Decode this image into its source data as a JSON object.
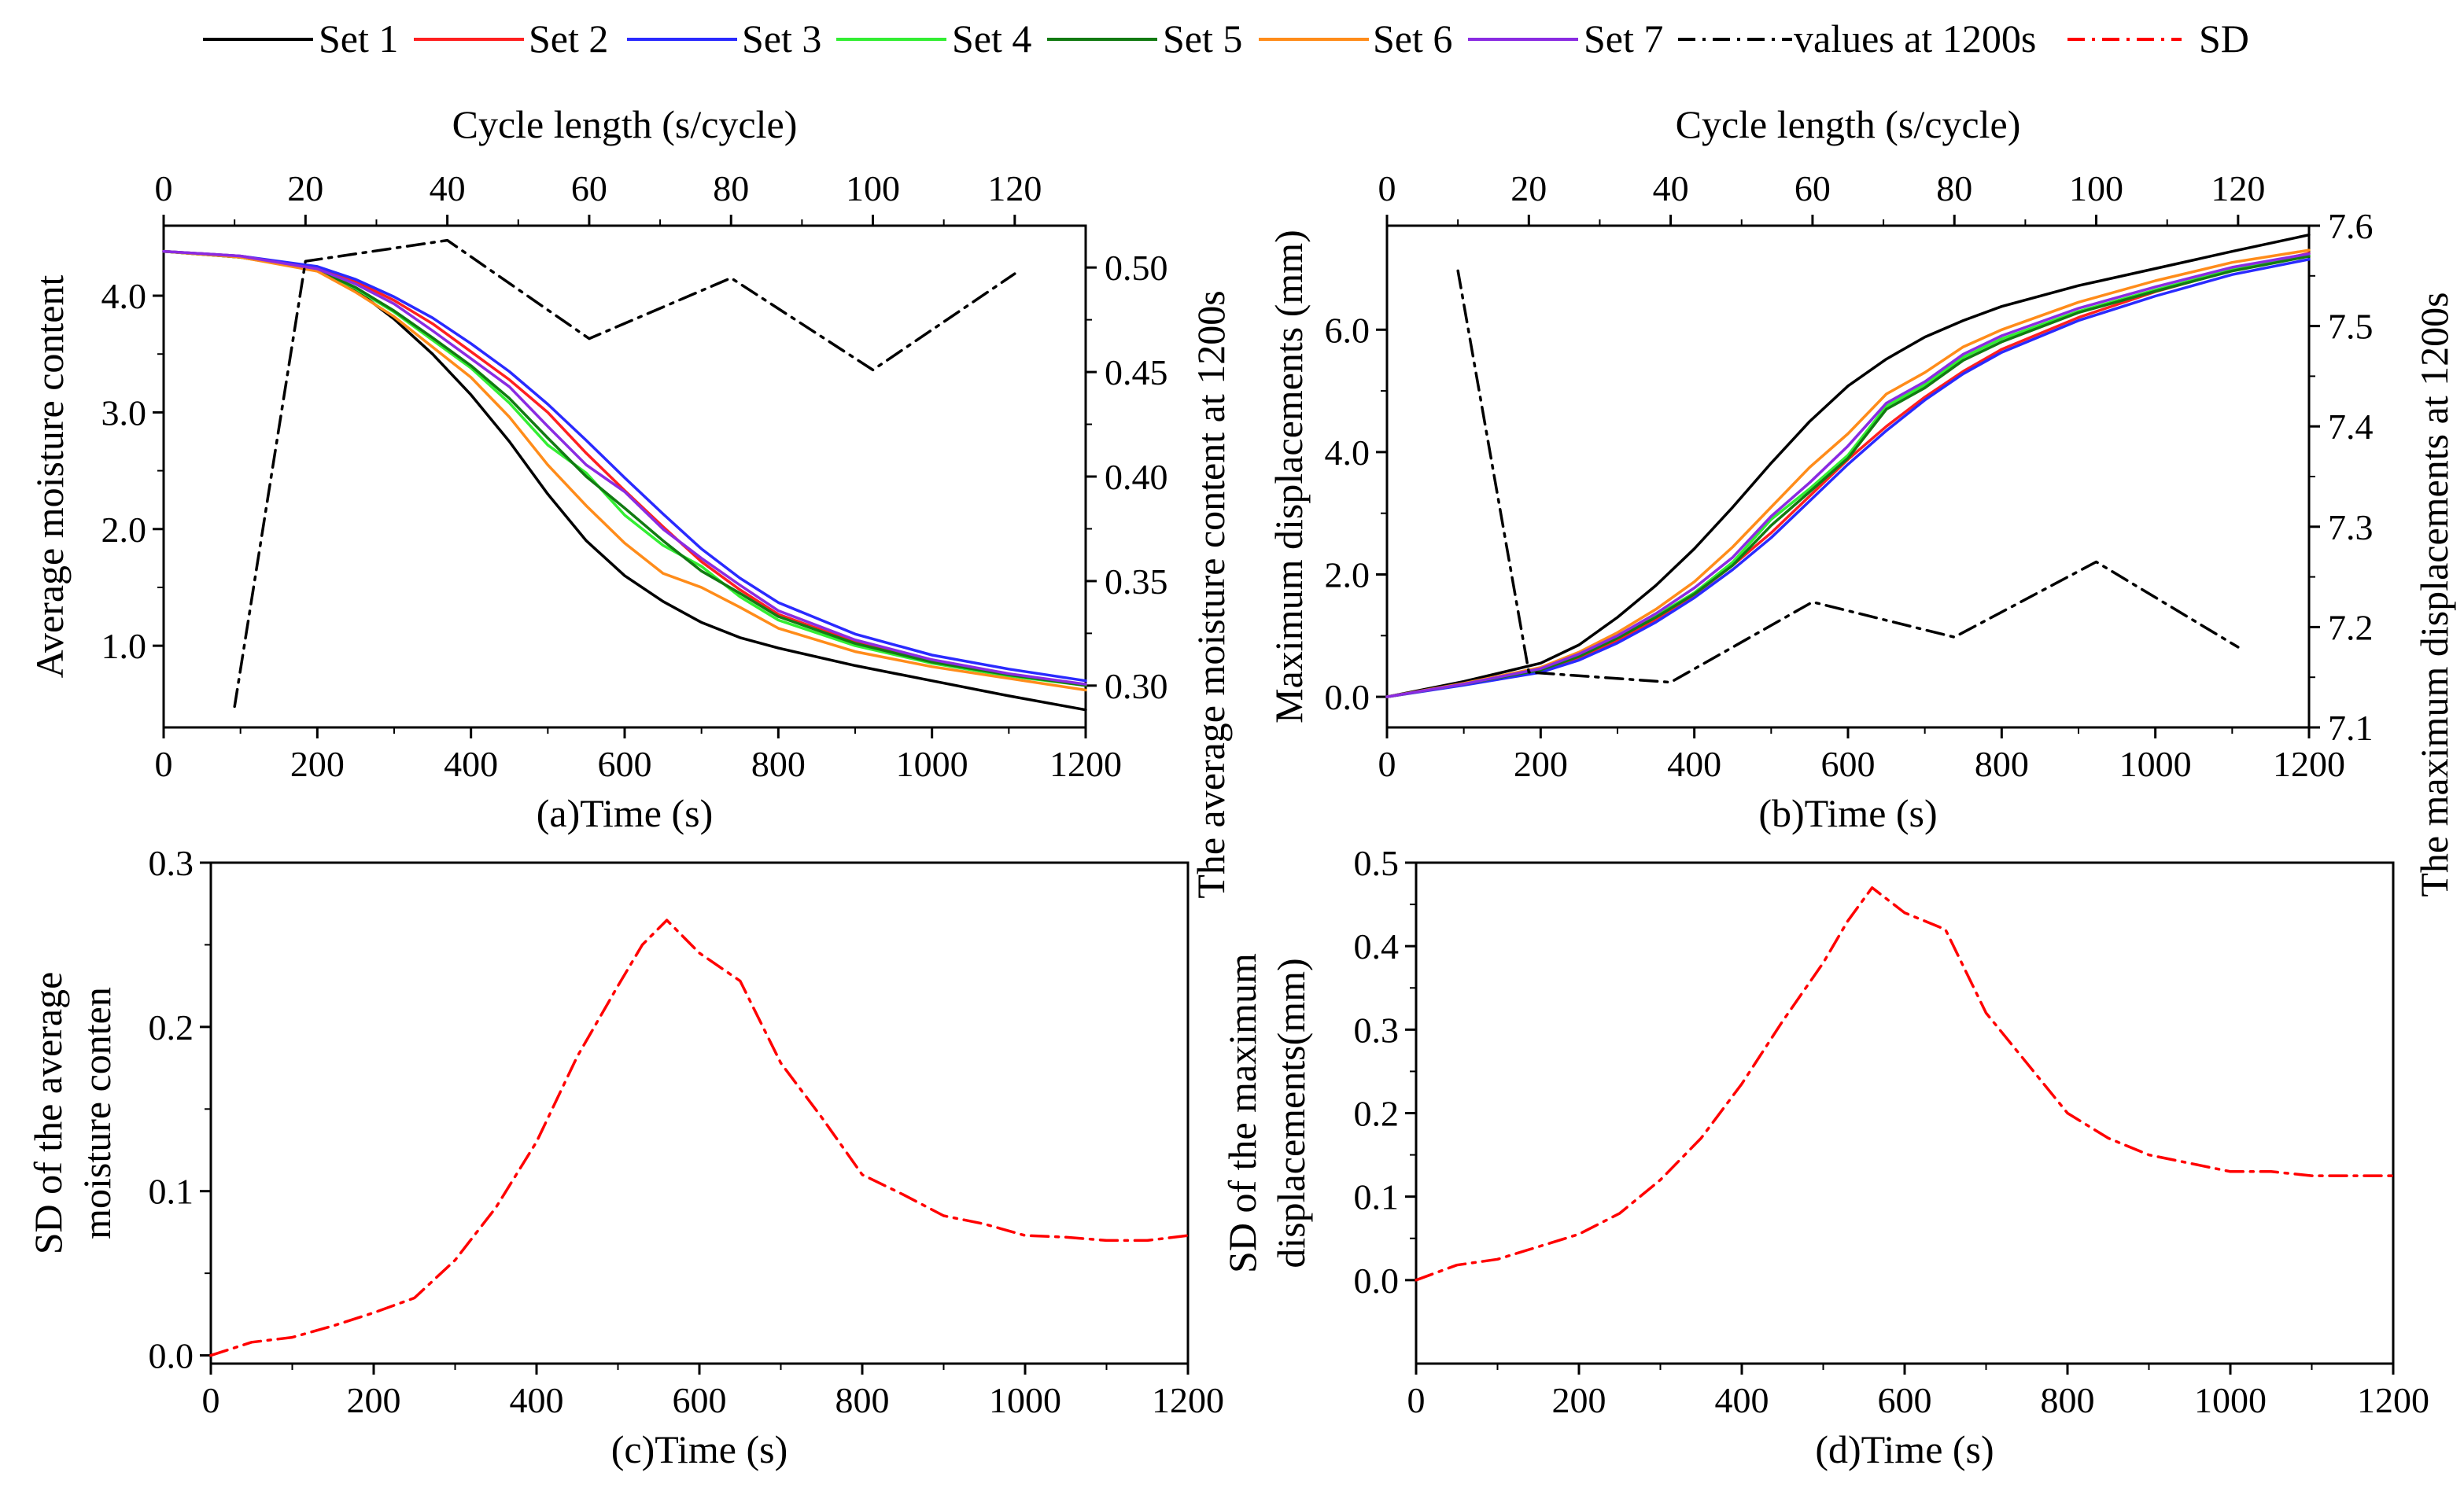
{
  "legend": [
    {
      "label": "Set 1",
      "color": "#000000",
      "style": "solid"
    },
    {
      "label": "Set 2",
      "color": "#ff2020",
      "style": "solid"
    },
    {
      "label": "Set 3",
      "color": "#2a2aff",
      "style": "solid"
    },
    {
      "label": "Set 4",
      "color": "#33ee33",
      "style": "solid"
    },
    {
      "label": "Set 5",
      "color": "#127a12",
      "style": "solid"
    },
    {
      "label": "Set 6",
      "color": "#ff8c1a",
      "style": "solid"
    },
    {
      "label": "Set 7",
      "color": "#8a2be2",
      "style": "solid"
    },
    {
      "label": "values at 1200s",
      "color": "#000000",
      "style": "dashdot"
    },
    {
      "label": "SD",
      "color": "#ff0000",
      "style": "dashdot"
    }
  ],
  "chart_data": [
    {
      "id": "a",
      "type": "line",
      "xlabel": "(a)Time (s)",
      "ylabel": "Average moisture content",
      "top_xlabel": "Cycle length (s/cycle)",
      "right_ylabel": "The average moisture content at 1200s",
      "xlim": [
        0,
        1200
      ],
      "ylim": [
        0.3,
        4.6
      ],
      "xticks": [
        0,
        200,
        400,
        600,
        800,
        1000,
        1200
      ],
      "yticks": [
        1.0,
        2.0,
        3.0,
        4.0
      ],
      "yticklabels": [
        "1.0",
        "2.0",
        "3.0",
        "4.0"
      ],
      "top_xlim": [
        0,
        130
      ],
      "top_xticks": [
        0,
        20,
        40,
        60,
        80,
        100,
        120
      ],
      "right_ylim": [
        0.28,
        0.52
      ],
      "right_yticks": [
        0.3,
        0.35,
        0.4,
        0.45,
        0.5
      ],
      "right_yticklabels": [
        "0.30",
        "0.35",
        "0.40",
        "0.45",
        "0.50"
      ],
      "series": [
        {
          "name": "Set 1",
          "x": [
            0,
            100,
            200,
            250,
            300,
            350,
            400,
            450,
            500,
            550,
            600,
            650,
            700,
            750,
            800,
            900,
            1000,
            1100,
            1200
          ],
          "values": [
            4.38,
            4.33,
            4.22,
            4.05,
            3.8,
            3.5,
            3.15,
            2.75,
            2.3,
            1.9,
            1.6,
            1.38,
            1.2,
            1.07,
            0.98,
            0.83,
            0.7,
            0.57,
            0.45
          ]
        },
        {
          "name": "Set 2",
          "x": [
            0,
            100,
            200,
            250,
            300,
            350,
            400,
            450,
            500,
            550,
            600,
            650,
            700,
            750,
            800,
            900,
            1000,
            1100,
            1200
          ],
          "values": [
            4.38,
            4.34,
            4.24,
            4.12,
            3.96,
            3.76,
            3.52,
            3.28,
            3.0,
            2.65,
            2.33,
            2.02,
            1.72,
            1.48,
            1.27,
            1.03,
            0.87,
            0.75,
            0.66
          ]
        },
        {
          "name": "Set 3",
          "x": [
            0,
            100,
            200,
            250,
            300,
            350,
            400,
            450,
            500,
            550,
            600,
            650,
            700,
            750,
            800,
            900,
            1000,
            1100,
            1200
          ],
          "values": [
            4.38,
            4.34,
            4.25,
            4.14,
            3.99,
            3.81,
            3.59,
            3.35,
            3.07,
            2.76,
            2.44,
            2.13,
            1.83,
            1.58,
            1.37,
            1.1,
            0.92,
            0.8,
            0.7
          ]
        },
        {
          "name": "Set 4",
          "x": [
            0,
            100,
            200,
            250,
            300,
            350,
            400,
            450,
            500,
            550,
            600,
            650,
            700,
            750,
            800,
            900,
            1000,
            1100,
            1200
          ],
          "values": [
            4.38,
            4.33,
            4.22,
            4.06,
            3.86,
            3.62,
            3.38,
            3.08,
            2.72,
            2.48,
            2.12,
            1.86,
            1.68,
            1.42,
            1.22,
            1.0,
            0.85,
            0.74,
            0.66
          ]
        },
        {
          "name": "Set 5",
          "x": [
            0,
            100,
            200,
            250,
            300,
            350,
            400,
            450,
            500,
            550,
            600,
            650,
            700,
            750,
            800,
            900,
            1000,
            1100,
            1200
          ],
          "values": [
            4.38,
            4.33,
            4.22,
            4.07,
            3.87,
            3.64,
            3.4,
            3.12,
            2.78,
            2.45,
            2.18,
            1.9,
            1.64,
            1.45,
            1.25,
            1.02,
            0.86,
            0.75,
            0.66
          ]
        },
        {
          "name": "Set 6",
          "x": [
            0,
            100,
            200,
            250,
            300,
            350,
            400,
            450,
            500,
            550,
            600,
            650,
            700,
            750,
            800,
            900,
            1000,
            1100,
            1200
          ],
          "values": [
            4.38,
            4.33,
            4.21,
            4.03,
            3.82,
            3.56,
            3.3,
            2.96,
            2.55,
            2.2,
            1.88,
            1.62,
            1.5,
            1.33,
            1.15,
            0.95,
            0.82,
            0.72,
            0.62
          ]
        },
        {
          "name": "Set 7",
          "x": [
            0,
            100,
            200,
            250,
            300,
            350,
            400,
            450,
            500,
            550,
            600,
            650,
            700,
            750,
            800,
            900,
            1000,
            1100,
            1200
          ],
          "values": [
            4.38,
            4.34,
            4.23,
            4.1,
            3.93,
            3.7,
            3.46,
            3.22,
            2.88,
            2.55,
            2.32,
            2.0,
            1.75,
            1.52,
            1.3,
            1.05,
            0.88,
            0.76,
            0.67
          ]
        },
        {
          "name": "values at 1200s",
          "axis": "secondary",
          "x": [
            10,
            20,
            40,
            60,
            80,
            100,
            120
          ],
          "values": [
            0.29,
            0.503,
            0.513,
            0.466,
            0.495,
            0.451,
            0.497
          ]
        }
      ]
    },
    {
      "id": "b",
      "type": "line",
      "xlabel": "(b)Time (s)",
      "ylabel": "Maximum displacements (mm)",
      "top_xlabel": "Cycle length (s/cycle)",
      "right_ylabel": "The maximum displacements at 1200s",
      "xlim": [
        0,
        1200
      ],
      "ylim": [
        -0.5,
        7.7
      ],
      "xticks": [
        0,
        200,
        400,
        600,
        800,
        1000,
        1200
      ],
      "yticks": [
        0.0,
        2.0,
        4.0,
        6.0
      ],
      "yticklabels": [
        "0.0",
        "2.0",
        "4.0",
        "6.0"
      ],
      "top_xlim": [
        0,
        130
      ],
      "top_xticks": [
        0,
        20,
        40,
        60,
        80,
        100,
        120
      ],
      "right_ylim": [
        7.1,
        7.6
      ],
      "right_yticks": [
        7.1,
        7.2,
        7.3,
        7.4,
        7.5,
        7.6
      ],
      "right_yticklabels": [
        "7.1",
        "7.2",
        "7.3",
        "7.4",
        "7.5",
        "7.6"
      ],
      "series": [
        {
          "name": "Set 1",
          "x": [
            0,
            100,
            200,
            250,
            300,
            350,
            400,
            450,
            500,
            550,
            600,
            650,
            700,
            750,
            800,
            900,
            1000,
            1100,
            1200
          ],
          "values": [
            0,
            0.25,
            0.55,
            0.85,
            1.3,
            1.82,
            2.42,
            3.1,
            3.82,
            4.5,
            5.08,
            5.52,
            5.88,
            6.15,
            6.38,
            6.72,
            7.0,
            7.28,
            7.55
          ]
        },
        {
          "name": "Set 2",
          "x": [
            0,
            100,
            200,
            250,
            300,
            350,
            400,
            450,
            500,
            550,
            600,
            650,
            700,
            750,
            800,
            900,
            1000,
            1100,
            1200
          ],
          "values": [
            0,
            0.2,
            0.42,
            0.63,
            0.92,
            1.27,
            1.67,
            2.15,
            2.68,
            3.28,
            3.88,
            4.42,
            4.9,
            5.32,
            5.68,
            6.2,
            6.62,
            6.97,
            7.25
          ]
        },
        {
          "name": "Set 3",
          "x": [
            0,
            100,
            200,
            250,
            300,
            350,
            400,
            450,
            500,
            550,
            600,
            650,
            700,
            750,
            800,
            900,
            1000,
            1100,
            1200
          ],
          "values": [
            0,
            0.19,
            0.4,
            0.6,
            0.88,
            1.22,
            1.62,
            2.08,
            2.6,
            3.2,
            3.8,
            4.35,
            4.85,
            5.28,
            5.63,
            6.15,
            6.55,
            6.9,
            7.15
          ]
        },
        {
          "name": "Set 4",
          "x": [
            0,
            100,
            200,
            250,
            300,
            350,
            400,
            450,
            500,
            550,
            600,
            650,
            700,
            750,
            800,
            900,
            1000,
            1100,
            1200
          ],
          "values": [
            0,
            0.21,
            0.45,
            0.68,
            0.98,
            1.32,
            1.7,
            2.2,
            2.9,
            3.4,
            3.95,
            4.75,
            5.1,
            5.55,
            5.85,
            6.3,
            6.65,
            6.98,
            7.22
          ]
        },
        {
          "name": "Set 5",
          "x": [
            0,
            100,
            200,
            250,
            300,
            350,
            400,
            450,
            500,
            550,
            600,
            650,
            700,
            750,
            800,
            900,
            1000,
            1100,
            1200
          ],
          "values": [
            0,
            0.21,
            0.44,
            0.66,
            0.96,
            1.3,
            1.68,
            2.15,
            2.8,
            3.35,
            3.9,
            4.7,
            5.05,
            5.5,
            5.8,
            6.28,
            6.63,
            6.96,
            7.2
          ]
        },
        {
          "name": "Set 6",
          "x": [
            0,
            100,
            200,
            250,
            300,
            350,
            400,
            450,
            500,
            550,
            600,
            650,
            700,
            750,
            800,
            900,
            1000,
            1100,
            1200
          ],
          "values": [
            0,
            0.22,
            0.48,
            0.73,
            1.05,
            1.43,
            1.88,
            2.45,
            3.1,
            3.75,
            4.3,
            4.95,
            5.3,
            5.72,
            6.0,
            6.45,
            6.8,
            7.1,
            7.3
          ]
        },
        {
          "name": "Set 7",
          "x": [
            0,
            100,
            200,
            250,
            300,
            350,
            400,
            450,
            500,
            550,
            600,
            650,
            700,
            750,
            800,
            900,
            1000,
            1100,
            1200
          ],
          "values": [
            0,
            0.21,
            0.46,
            0.7,
            1.0,
            1.36,
            1.78,
            2.28,
            2.95,
            3.5,
            4.1,
            4.8,
            5.15,
            5.6,
            5.9,
            6.35,
            6.7,
            7.02,
            7.24
          ]
        },
        {
          "name": "values at 1200s",
          "axis": "secondary",
          "x": [
            10,
            20,
            40,
            60,
            80,
            100,
            120
          ],
          "values": [
            7.555,
            7.155,
            7.145,
            7.225,
            7.19,
            7.265,
            7.18
          ]
        }
      ]
    },
    {
      "id": "c",
      "type": "line",
      "xlabel": "(c)Time (s)",
      "ylabel": [
        "SD of the average",
        "moisture conten"
      ],
      "xlim": [
        0,
        1200
      ],
      "ylim": [
        -0.005,
        0.3
      ],
      "xticks": [
        0,
        200,
        400,
        600,
        800,
        1000,
        1200
      ],
      "yticks": [
        0.0,
        0.1,
        0.2,
        0.3
      ],
      "yticklabels": [
        "0.0",
        "0.1",
        "0.2",
        "0.3"
      ],
      "series": [
        {
          "name": "SD",
          "x": [
            0,
            50,
            100,
            150,
            200,
            250,
            300,
            350,
            400,
            450,
            500,
            530,
            560,
            600,
            650,
            700,
            750,
            800,
            850,
            900,
            950,
            1000,
            1050,
            1100,
            1150,
            1200
          ],
          "values": [
            0,
            0.008,
            0.011,
            0.018,
            0.026,
            0.035,
            0.058,
            0.09,
            0.13,
            0.182,
            0.225,
            0.25,
            0.265,
            0.245,
            0.228,
            0.178,
            0.145,
            0.11,
            0.098,
            0.085,
            0.08,
            0.073,
            0.072,
            0.07,
            0.07,
            0.073
          ]
        }
      ]
    },
    {
      "id": "d",
      "type": "line",
      "xlabel": "(d)Time (s)",
      "ylabel": [
        "SD of the maximum",
        "displacements(mm)"
      ],
      "xlim": [
        0,
        1200
      ],
      "ylim": [
        -0.1,
        0.5
      ],
      "xticks": [
        0,
        200,
        400,
        600,
        800,
        1000,
        1200
      ],
      "yticks": [
        0.0,
        0.1,
        0.2,
        0.3,
        0.4,
        0.5
      ],
      "yticklabels": [
        "0.0",
        "0.1",
        "0.2",
        "0.3",
        "0.4",
        "0.5"
      ],
      "series": [
        {
          "name": "SD",
          "x": [
            0,
            50,
            100,
            150,
            200,
            250,
            300,
            350,
            400,
            450,
            500,
            530,
            560,
            600,
            650,
            700,
            750,
            800,
            850,
            900,
            950,
            1000,
            1050,
            1100,
            1150,
            1200
          ],
          "values": [
            0,
            0.018,
            0.025,
            0.04,
            0.055,
            0.08,
            0.12,
            0.17,
            0.235,
            0.31,
            0.38,
            0.43,
            0.47,
            0.44,
            0.42,
            0.32,
            0.26,
            0.2,
            0.17,
            0.15,
            0.14,
            0.13,
            0.13,
            0.125,
            0.125,
            0.125
          ]
        }
      ]
    }
  ]
}
